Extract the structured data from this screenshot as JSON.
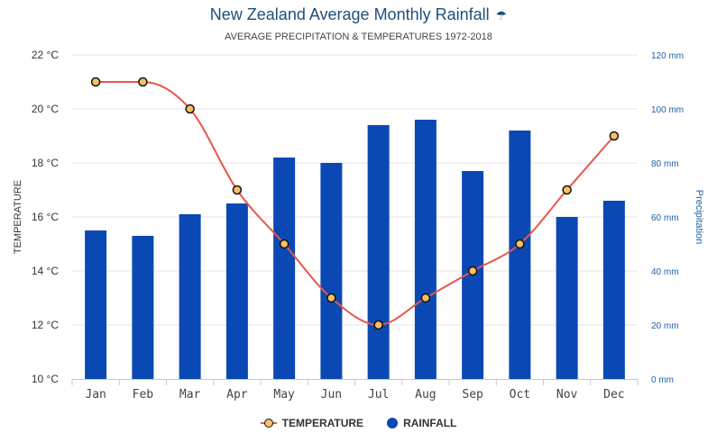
{
  "header": {
    "title": "New Zealand Average Monthly Rainfall",
    "title_icon": "umbrella-icon",
    "subtitle": "AVERAGE PRECIPITATION & TEMPERATURES 1972-2018"
  },
  "legend": {
    "temperature_label": "TEMPERATURE",
    "rainfall_label": "RAINFALL"
  },
  "colors": {
    "bar": "#0a49b4",
    "line": "#e8554e",
    "marker_fill": "#f6c163",
    "marker_stroke": "#111111",
    "left_axis_text": "#333333",
    "right_axis_text": "#1f5fa8",
    "grid": "#e6e6e6"
  },
  "chart_data": {
    "type": "bar",
    "categories": [
      "Jan",
      "Feb",
      "Mar",
      "Apr",
      "May",
      "Jun",
      "Jul",
      "Aug",
      "Sep",
      "Oct",
      "Nov",
      "Dec"
    ],
    "series": [
      {
        "name": "RAINFALL",
        "type": "bar",
        "axis": "right",
        "unit": "mm",
        "values": [
          55,
          53,
          61,
          65,
          82,
          80,
          94,
          96,
          77,
          92,
          60,
          66
        ]
      },
      {
        "name": "TEMPERATURE",
        "type": "line",
        "axis": "left",
        "unit": "°C",
        "values": [
          21,
          21,
          20,
          17,
          15,
          13,
          12,
          13,
          14,
          15,
          17,
          19
        ]
      }
    ],
    "y_left": {
      "label": "TEMPERATURE",
      "range": [
        10,
        22
      ],
      "ticks": [
        "10 °C",
        "12 °C",
        "14 °C",
        "16 °C",
        "18 °C",
        "20 °C",
        "22 °C"
      ]
    },
    "y_right": {
      "label": "Precipitation",
      "range": [
        0,
        120
      ],
      "ticks": [
        "0 mm",
        "20 mm",
        "40 mm",
        "60 mm",
        "80 mm",
        "100 mm",
        "120 mm"
      ]
    },
    "grid": true,
    "legend_position": "bottom-center"
  }
}
